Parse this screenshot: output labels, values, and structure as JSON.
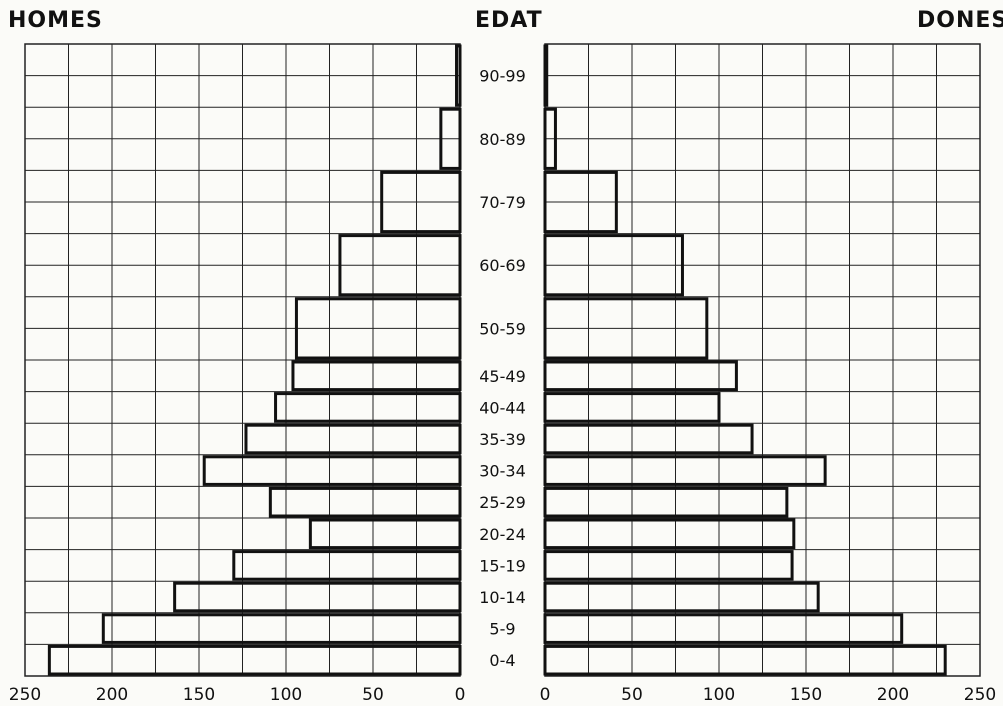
{
  "labels": {
    "left": "HOMES",
    "center": "EDAT",
    "right": "DONES"
  },
  "chart_data": {
    "type": "bar",
    "orientation": "horizontal",
    "subtype": "population-pyramid",
    "categories": [
      "0-4",
      "5-9",
      "10-14",
      "15-19",
      "20-24",
      "25-29",
      "30-34",
      "35-39",
      "40-44",
      "45-49",
      "50-59",
      "60-69",
      "70-79",
      "80-89",
      "90-99"
    ],
    "age_span_years": [
      5,
      5,
      5,
      5,
      5,
      5,
      5,
      5,
      5,
      5,
      10,
      10,
      10,
      10,
      10
    ],
    "series": [
      {
        "values": [
          236,
          205,
          164,
          130,
          86,
          109,
          147,
          123,
          106,
          96,
          94,
          69,
          45,
          11,
          2
        ]
      },
      {
        "values": [
          230,
          205,
          157,
          142,
          143,
          139,
          161,
          119,
          100,
          110,
          93,
          79,
          41,
          6,
          1
        ]
      }
    ],
    "left_axis_ticks": [
      "250",
      "200",
      "150",
      "100",
      "50",
      "0"
    ],
    "right_axis_ticks": [
      "0",
      "50",
      "100",
      "150",
      "200",
      "250"
    ],
    "xlim": [
      0,
      250
    ],
    "grid": true
  }
}
